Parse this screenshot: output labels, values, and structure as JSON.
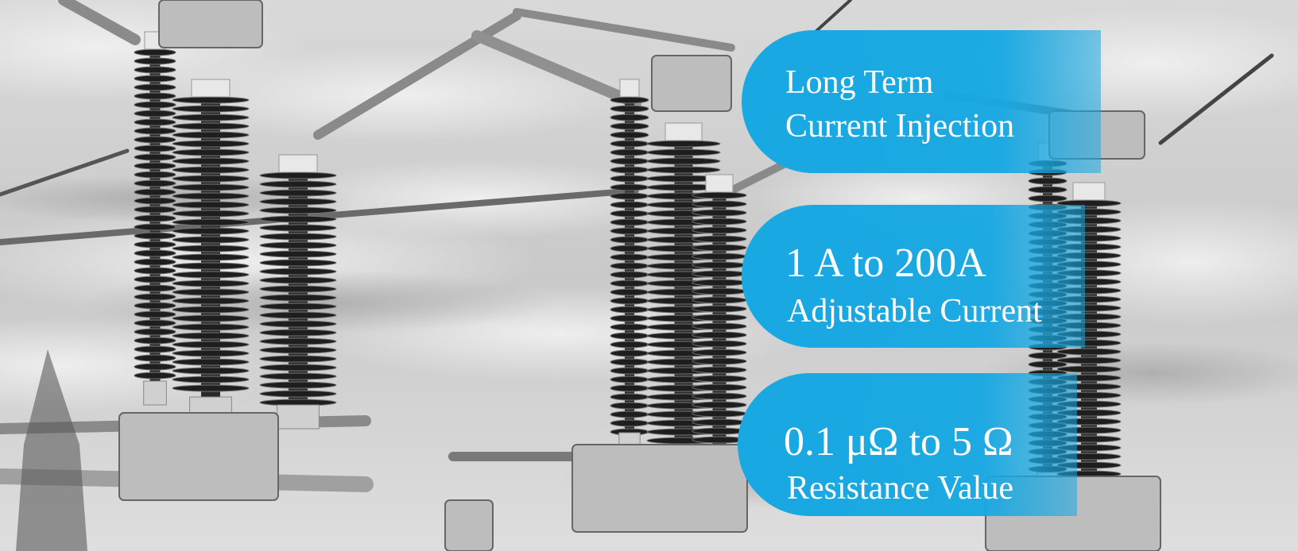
{
  "callouts": [
    {
      "lines": [
        "Long Term",
        "Current Injection"
      ]
    },
    {
      "lines": [
        "1 A to 200A",
        "Adjustable Current"
      ]
    },
    {
      "lines": [
        "0.1 μΩ to 5 Ω",
        "Resistance Value"
      ]
    }
  ]
}
